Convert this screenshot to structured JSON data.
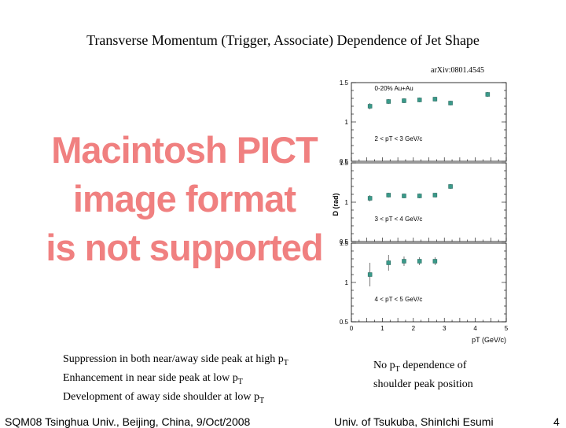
{
  "title": "Transverse Momentum (Trigger, Associate) Dependence of Jet Shape",
  "reference": "arXiv:0801.4545",
  "placeholder": {
    "lines": [
      "Macintosh PICT",
      "image format",
      "is not supported"
    ]
  },
  "chart_data": {
    "type": "scatter",
    "ylabel": "D (rad)",
    "xlabel": "pT (GeV/c)",
    "xlim": [
      0,
      5
    ],
    "ylim": [
      0.5,
      1.5
    ],
    "x_ticks": [
      "0",
      "0.5",
      "1",
      "1.5",
      "2",
      "2.5",
      "3",
      "3.5",
      "4",
      "4.5",
      "5"
    ],
    "y_ticks": [
      "0.5",
      "1",
      "1.5"
    ],
    "panels": [
      {
        "label": "2 < pT < 3 GeV/c",
        "annotation": "0-20% Au+Au",
        "x": [
          0.6,
          1.2,
          1.7,
          2.2,
          2.7,
          3.2,
          4.4
        ],
        "y": [
          1.2,
          1.26,
          1.27,
          1.28,
          1.29,
          1.24,
          1.35
        ],
        "err": [
          0.04,
          0.03,
          0.03,
          0.03,
          0.03,
          0.03,
          0.03
        ]
      },
      {
        "label": "3 < pT < 4 GeV/c",
        "x": [
          0.6,
          1.2,
          1.7,
          2.2,
          2.7,
          3.2
        ],
        "y": [
          1.05,
          1.09,
          1.08,
          1.08,
          1.09,
          1.2
        ],
        "err": [
          0.04,
          0.03,
          0.03,
          0.03,
          0.03,
          0.03
        ]
      },
      {
        "label": "4 < pT < 5 GeV/c",
        "x": [
          0.6,
          1.2,
          1.7,
          2.2,
          2.7
        ],
        "y": [
          1.1,
          1.25,
          1.27,
          1.27,
          1.27
        ],
        "err": [
          0.15,
          0.1,
          0.06,
          0.05,
          0.05
        ]
      }
    ]
  },
  "bullets_left": [
    {
      "text": "Suppression in both near/away side peak at high p",
      "sub": "T"
    },
    {
      "text": "Enhancement in near side peak at low p",
      "sub": "T"
    },
    {
      "text": "Development of away side shoulder at low p",
      "sub": "T"
    }
  ],
  "bullets_right": [
    {
      "pre": "No p",
      "sub": "T",
      "post": " dependence of"
    },
    {
      "pre": "shoulder peak position",
      "sub": "",
      "post": ""
    }
  ],
  "footer": {
    "left": "SQM08 Tsinghua Univ., Beijing, China, 9/Oct/2008",
    "center": "Univ. of Tsukuba, ShinIchi Esumi",
    "page": "4"
  }
}
